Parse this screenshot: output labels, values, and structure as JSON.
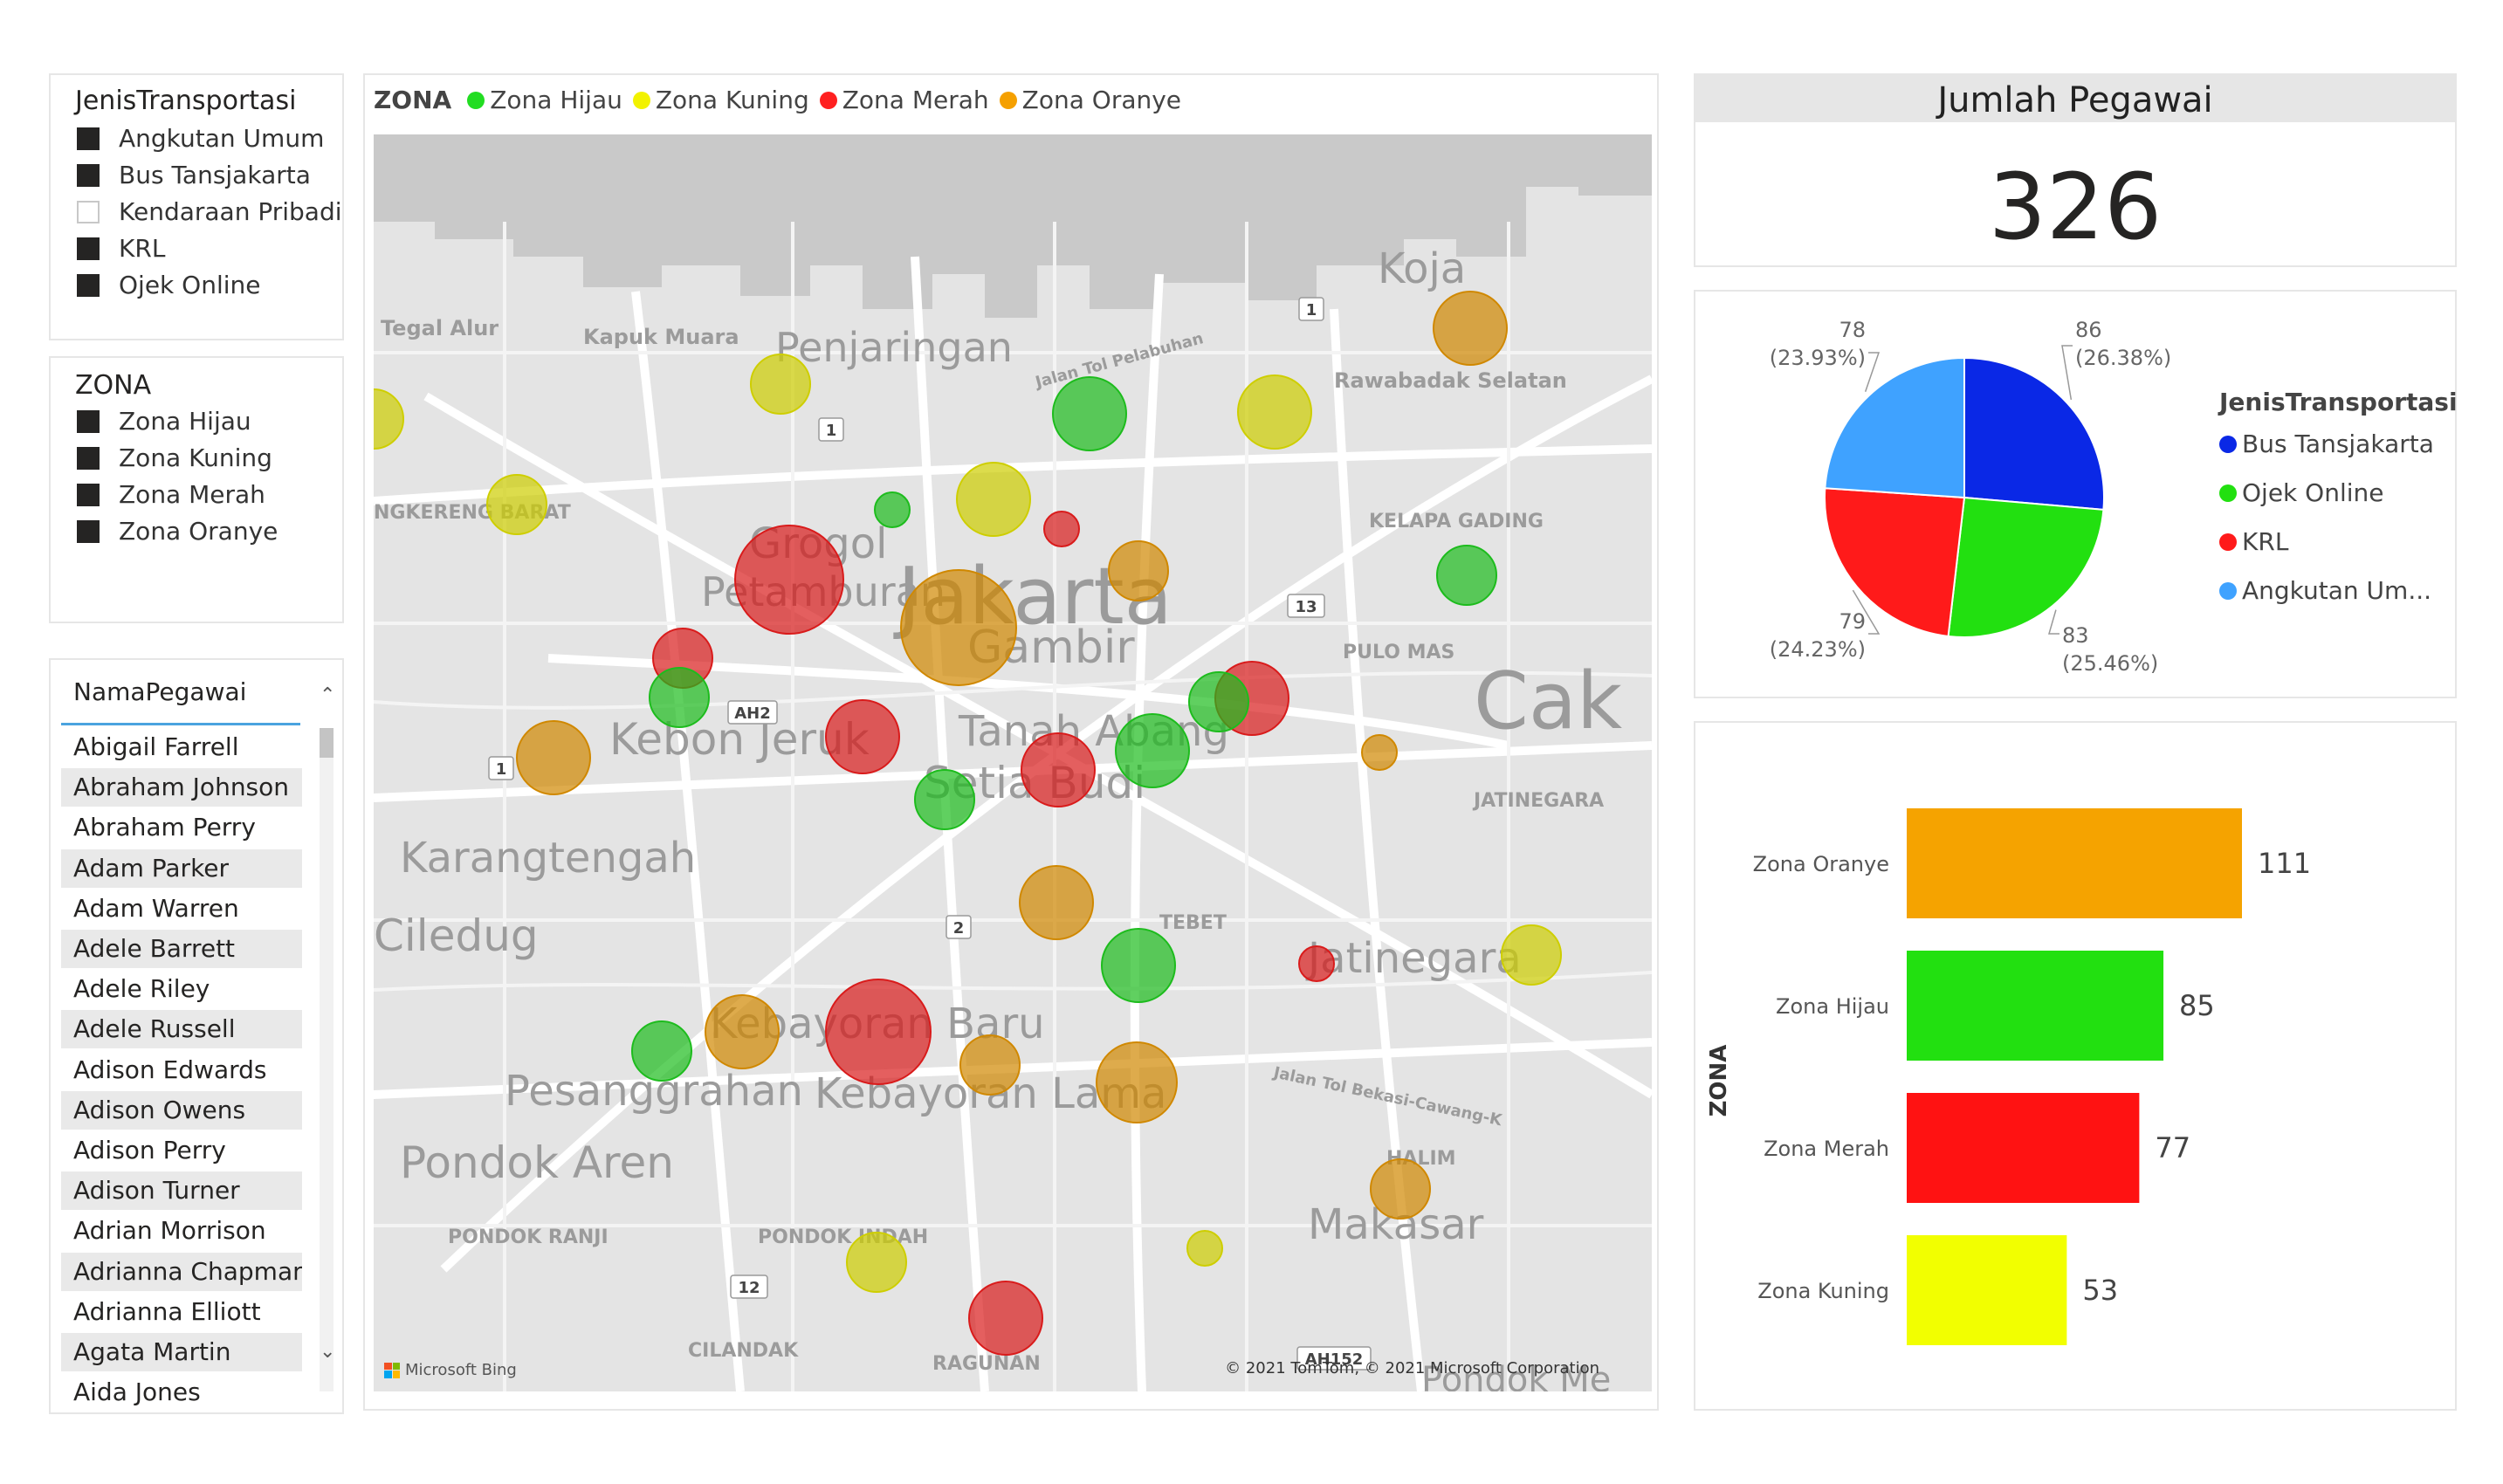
{
  "slicer_transport": {
    "title": "JenisTransportasi",
    "items": [
      {
        "label": "Angkutan Umum",
        "checked": true
      },
      {
        "label": "Bus Tansjakarta",
        "checked": true
      },
      {
        "label": "Kendaraan Pribadi",
        "checked": false
      },
      {
        "label": "KRL",
        "checked": true
      },
      {
        "label": "Ojek Online",
        "checked": true
      }
    ]
  },
  "slicer_zona": {
    "title": "ZONA",
    "items": [
      {
        "label": "Zona Hijau",
        "checked": true
      },
      {
        "label": "Zona Kuning",
        "checked": true
      },
      {
        "label": "Zona Merah",
        "checked": true
      },
      {
        "label": "Zona Oranye",
        "checked": true
      }
    ]
  },
  "names_list": {
    "header": "NamaPegawai",
    "names": [
      "Abigail Farrell",
      "Abraham Johnson",
      "Abraham Perry",
      "Adam Parker",
      "Adam Warren",
      "Adele Barrett",
      "Adele Riley",
      "Adele Russell",
      "Adison Edwards",
      "Adison Owens",
      "Adison Perry",
      "Adison Turner",
      "Adrian Morrison",
      "Adrianna Chapman",
      "Adrianna Elliott",
      "Agata Martin",
      "Aida Jones"
    ],
    "scroll_up_icon": "chevron-up-icon",
    "scroll_down_icon": "chevron-down-icon"
  },
  "map": {
    "legend_title": "ZONA",
    "legend": [
      {
        "label": "Zona Hijau",
        "color": "#22dd22"
      },
      {
        "label": "Zona Kuning",
        "color": "#f2f200"
      },
      {
        "label": "Zona Merah",
        "color": "#ff2020"
      },
      {
        "label": "Zona Oranye",
        "color": "#f5a000"
      }
    ],
    "places": [
      "Tegal Alur",
      "Kapuk Muara",
      "Penjaringan",
      "Koja",
      "Rawabadak Selatan",
      "Jalan Tol Pelabuhan",
      "NGKERENG BARAT",
      "KELAPA GADING",
      "Grogol",
      "Petamburan",
      "Jakarta",
      "Gambir",
      "PULO MAS",
      "Kebon Jeruk",
      "Tanah Abang",
      "Setia Budi",
      "JATINEGARA",
      "Cak",
      "Karangtengah",
      "Ciledug",
      "TEBET",
      "Jatinegara",
      "Jalan Tol Bekasi-Cawang-K",
      "Kebayoran Baru",
      "Pesanggrahan",
      "Kebayoran Lama",
      "Pondok Aren",
      "HALIM",
      "Makasar",
      "PONDOK RANJI",
      "PONDOK INDAH",
      "CILANDAK",
      "RAGUNAN",
      "Pondok Me"
    ],
    "road_shields": [
      "1",
      "1",
      "1",
      "13",
      "AH2",
      "2",
      "12",
      "AH152"
    ],
    "bing_label": "Microsoft Bing",
    "copyright": "© 2021 TomTom, © 2021 Microsoft Corporation",
    "bubbles": [
      {
        "zone": "Zona Oranye",
        "size": 3
      },
      {
        "zone": "Zona Kuning",
        "size": 2
      },
      {
        "zone": "Zona Hijau",
        "size": 3
      },
      {
        "zone": "Zona Kuning",
        "size": 3
      },
      {
        "zone": "Zona Kuning",
        "size": 2
      },
      {
        "zone": "Zona Kuning",
        "size": 2
      },
      {
        "zone": "Zona Hijau",
        "size": 1
      },
      {
        "zone": "Zona Kuning",
        "size": 3
      },
      {
        "zone": "Zona Merah",
        "size": 1
      },
      {
        "zone": "Zona Merah",
        "size": 5
      },
      {
        "zone": "Zona Oranye",
        "size": 7
      },
      {
        "zone": "Zona Oranye",
        "size": 2
      },
      {
        "zone": "Zona Merah",
        "size": 2
      },
      {
        "zone": "Zona Hijau",
        "size": 2
      },
      {
        "zone": "Zona Hijau",
        "size": 2
      },
      {
        "zone": "Zona Merah",
        "size": 3
      },
      {
        "zone": "Zona Oranye",
        "size": 3
      },
      {
        "zone": "Zona Merah",
        "size": 3
      },
      {
        "zone": "Zona Merah",
        "size": 3
      },
      {
        "zone": "Zona Hijau",
        "size": 3
      },
      {
        "zone": "Zona Hijau",
        "size": 2
      },
      {
        "zone": "Zona Hijau",
        "size": 2
      },
      {
        "zone": "Zona Oranye",
        "size": 1
      },
      {
        "zone": "Zona Oranye",
        "size": 3
      },
      {
        "zone": "Zona Hijau",
        "size": 3
      },
      {
        "zone": "Zona Merah",
        "size": 1
      },
      {
        "zone": "Zona Kuning",
        "size": 2
      },
      {
        "zone": "Zona Oranye",
        "size": 3
      },
      {
        "zone": "Zona Merah",
        "size": 6
      },
      {
        "zone": "Zona Hijau",
        "size": 2
      },
      {
        "zone": "Zona Oranye",
        "size": 2
      },
      {
        "zone": "Zona Oranye",
        "size": 4
      },
      {
        "zone": "Zona Oranye",
        "size": 2
      },
      {
        "zone": "Zona Kuning",
        "size": 2
      },
      {
        "zone": "Zona Kuning",
        "size": 1
      },
      {
        "zone": "Zona Merah",
        "size": 3
      }
    ]
  },
  "card": {
    "title": "Jumlah Pegawai",
    "value": "326"
  },
  "chart_data": [
    {
      "type": "pie",
      "legend_title": "JenisTransportasi",
      "legend_placement": "right",
      "slices": [
        {
          "name": "Bus Tansjakarta",
          "value": 86,
          "percent": "26.38%",
          "color": "#0a28e6"
        },
        {
          "name": "Ojek Online",
          "value": 83,
          "percent": "25.46%",
          "color": "#22e010"
        },
        {
          "name": "KRL",
          "value": 79,
          "percent": "24.23%",
          "color": "#ff1a1a"
        },
        {
          "name": "Angkutan Umum",
          "value": 78,
          "percent": "23.93%",
          "color": "#3fa2ff"
        }
      ],
      "legend_labels": [
        "Bus Tansjakarta",
        "Ojek Online",
        "KRL",
        "Angkutan Um..."
      ]
    },
    {
      "type": "bar",
      "orientation": "horizontal",
      "ylabel": "ZONA",
      "categories": [
        "Zona Oranye",
        "Zona Hijau",
        "Zona Merah",
        "Zona Kuning"
      ],
      "values": [
        111,
        85,
        77,
        53
      ],
      "colors": [
        "#f5a300",
        "#22e010",
        "#ff1212",
        "#f2ff00"
      ],
      "xlim": [
        0,
        111
      ]
    }
  ]
}
